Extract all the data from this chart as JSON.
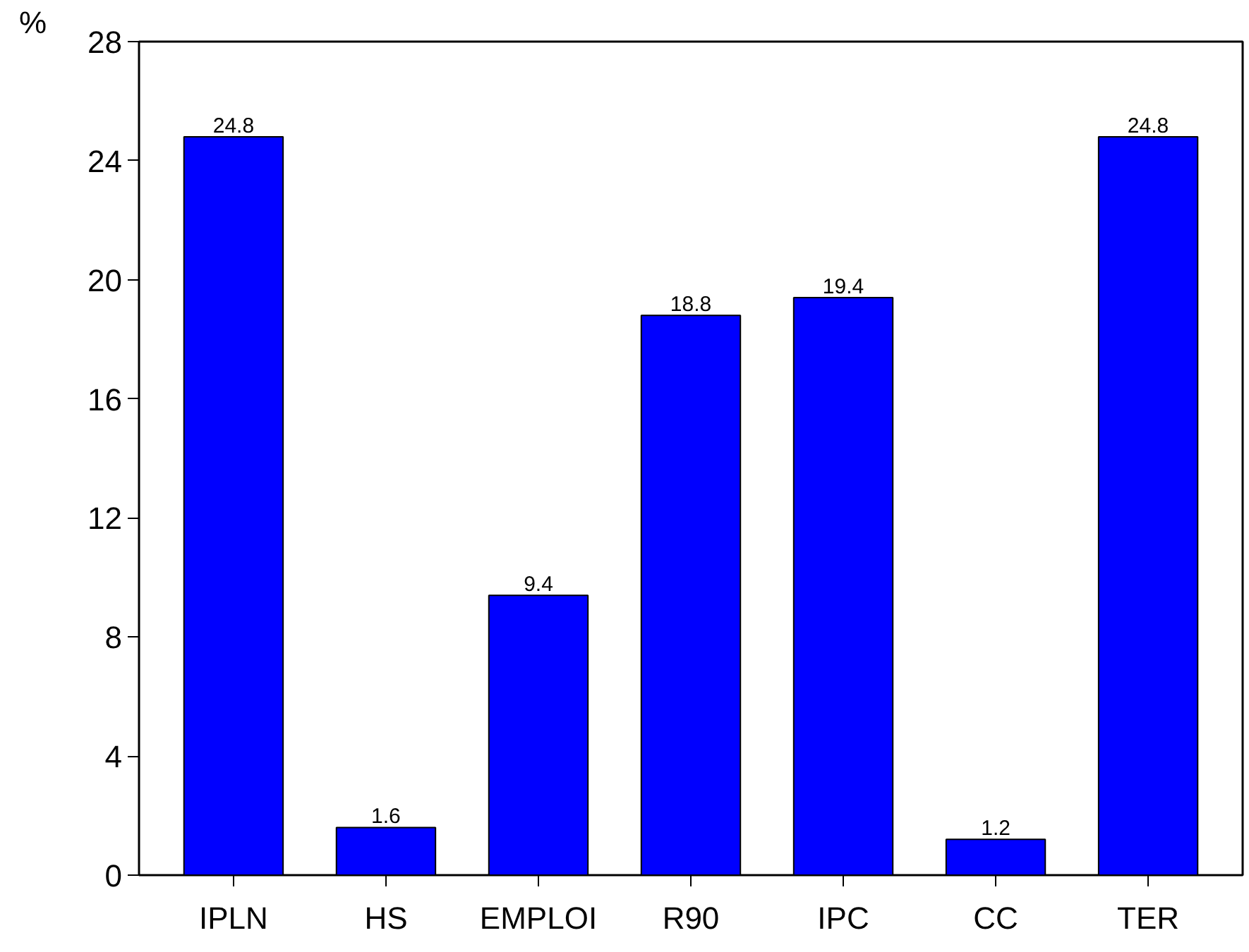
{
  "chart_data": {
    "type": "bar",
    "ylabel": "%",
    "categories": [
      "IPLN",
      "HS",
      "EMPLOI",
      "R90",
      "IPC",
      "CC",
      "TER"
    ],
    "values": [
      24.8,
      1.6,
      9.4,
      18.8,
      19.4,
      1.2,
      24.8
    ],
    "color": "#0000ff",
    "ylim": [
      0,
      28
    ],
    "yticks": [
      0,
      4,
      8,
      12,
      16,
      20,
      24,
      28
    ],
    "grid": false,
    "data_labels": true
  }
}
